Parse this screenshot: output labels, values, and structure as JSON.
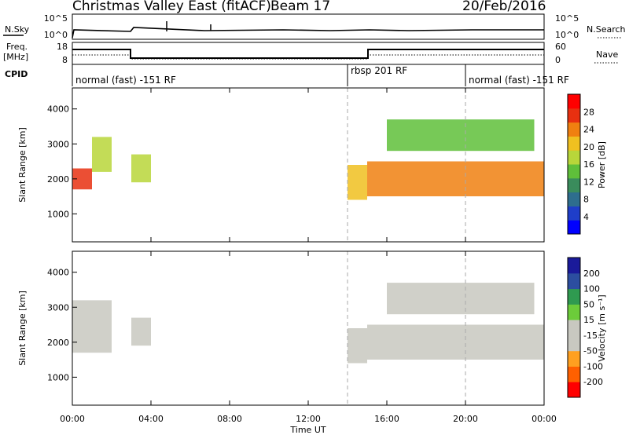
{
  "header": {
    "title": "Christmas Valley East (fitACF)",
    "beam": "Beam 17",
    "date": "20/Feb/2016"
  },
  "strip": {
    "nsky_label": "N.Sky",
    "nsearch_label": "N.Search",
    "nsky_ticks": [
      "10^5",
      "10^0"
    ],
    "freq_label_1": "Freq.",
    "freq_label_2": "[MHz]",
    "freq_ticks": [
      "18",
      "8"
    ],
    "nave_label": "Nave",
    "nave_ticks": [
      "60",
      "0"
    ],
    "cpid_label": "CPID",
    "modes": [
      {
        "label": "normal (fast) -151 RF",
        "start_hour": 0,
        "end_hour": 14
      },
      {
        "label": "rbsp 201 RF",
        "start_hour": 14,
        "end_hour": 20
      },
      {
        "label": "normal (fast) -151 RF",
        "start_hour": 20,
        "end_hour": 24
      }
    ]
  },
  "colors": {
    "power_scale": [
      "#0000ff",
      "#1f3ec9",
      "#2e6e8e",
      "#3a8c5c",
      "#5fbf3a",
      "#b8d63a",
      "#f0c020",
      "#f08010",
      "#e83010",
      "#ff0000"
    ],
    "velocity_scale": [
      "#ff0000",
      "#ff6000",
      "#ffa020",
      "#c8c8c0",
      "#c8c8c0",
      "#6ccc3a",
      "#2f9a50",
      "#2c4ea0",
      "#1a1a9a"
    ]
  },
  "power_colorbar": {
    "label": "Power [dB]",
    "ticks": [
      "28",
      "24",
      "20",
      "16",
      "12",
      "8",
      "4"
    ]
  },
  "velocity_colorbar": {
    "label": "Velocity [m s⁻¹]",
    "ticks": [
      "200",
      "100",
      "50",
      "15",
      "-15",
      "-50",
      "-100",
      "-200"
    ]
  },
  "chart_data": [
    {
      "type": "heatmap",
      "title": "",
      "xlabel": "Time UT",
      "ylabel": "Slant Range [km]",
      "xlim": [
        0,
        24
      ],
      "ylim": [
        200,
        4600
      ],
      "x_ticks": [
        "00:00",
        "04:00",
        "08:00",
        "12:00",
        "16:00",
        "20:00",
        "00:00"
      ],
      "y_ticks": [
        1000,
        2000,
        3000,
        4000
      ],
      "colorbar": "Power [dB]",
      "features": [
        {
          "start_hour": 0.0,
          "end_hour": 1.0,
          "range_start_km": 1700,
          "range_end_km": 2300,
          "value": 25
        },
        {
          "start_hour": 1.0,
          "end_hour": 2.0,
          "range_start_km": 2200,
          "range_end_km": 3200,
          "value": 18
        },
        {
          "start_hour": 3.0,
          "end_hour": 4.0,
          "range_start_km": 1900,
          "range_end_km": 2700,
          "value": 16
        },
        {
          "start_hour": 14.0,
          "end_hour": 15.0,
          "range_start_km": 1400,
          "range_end_km": 2400,
          "value": 20
        },
        {
          "start_hour": 15.0,
          "end_hour": 24.0,
          "range_start_km": 1500,
          "range_end_km": 2500,
          "value": 22
        },
        {
          "start_hour": 16.0,
          "end_hour": 23.5,
          "range_start_km": 2800,
          "range_end_km": 3700,
          "value": 12
        }
      ]
    },
    {
      "type": "heatmap",
      "title": "",
      "xlabel": "Time UT",
      "ylabel": "Slant Range [km]",
      "xlim": [
        0,
        24
      ],
      "ylim": [
        200,
        4600
      ],
      "x_ticks": [
        "00:00",
        "04:00",
        "08:00",
        "12:00",
        "16:00",
        "20:00",
        "00:00"
      ],
      "y_ticks": [
        1000,
        2000,
        3000,
        4000
      ],
      "colorbar": "Velocity [m s⁻¹]",
      "features": [
        {
          "start_hour": 0.0,
          "end_hour": 2.0,
          "range_start_km": 1700,
          "range_end_km": 3200,
          "value": 0
        },
        {
          "start_hour": 3.0,
          "end_hour": 4.0,
          "range_start_km": 1900,
          "range_end_km": 2700,
          "value": 0
        },
        {
          "start_hour": 14.0,
          "end_hour": 15.0,
          "range_start_km": 1400,
          "range_end_km": 2400,
          "value": 30
        },
        {
          "start_hour": 15.0,
          "end_hour": 24.0,
          "range_start_km": 1500,
          "range_end_km": 2500,
          "value": 0
        },
        {
          "start_hour": 16.0,
          "end_hour": 23.5,
          "range_start_km": 2800,
          "range_end_km": 3700,
          "value": 0
        }
      ]
    }
  ]
}
